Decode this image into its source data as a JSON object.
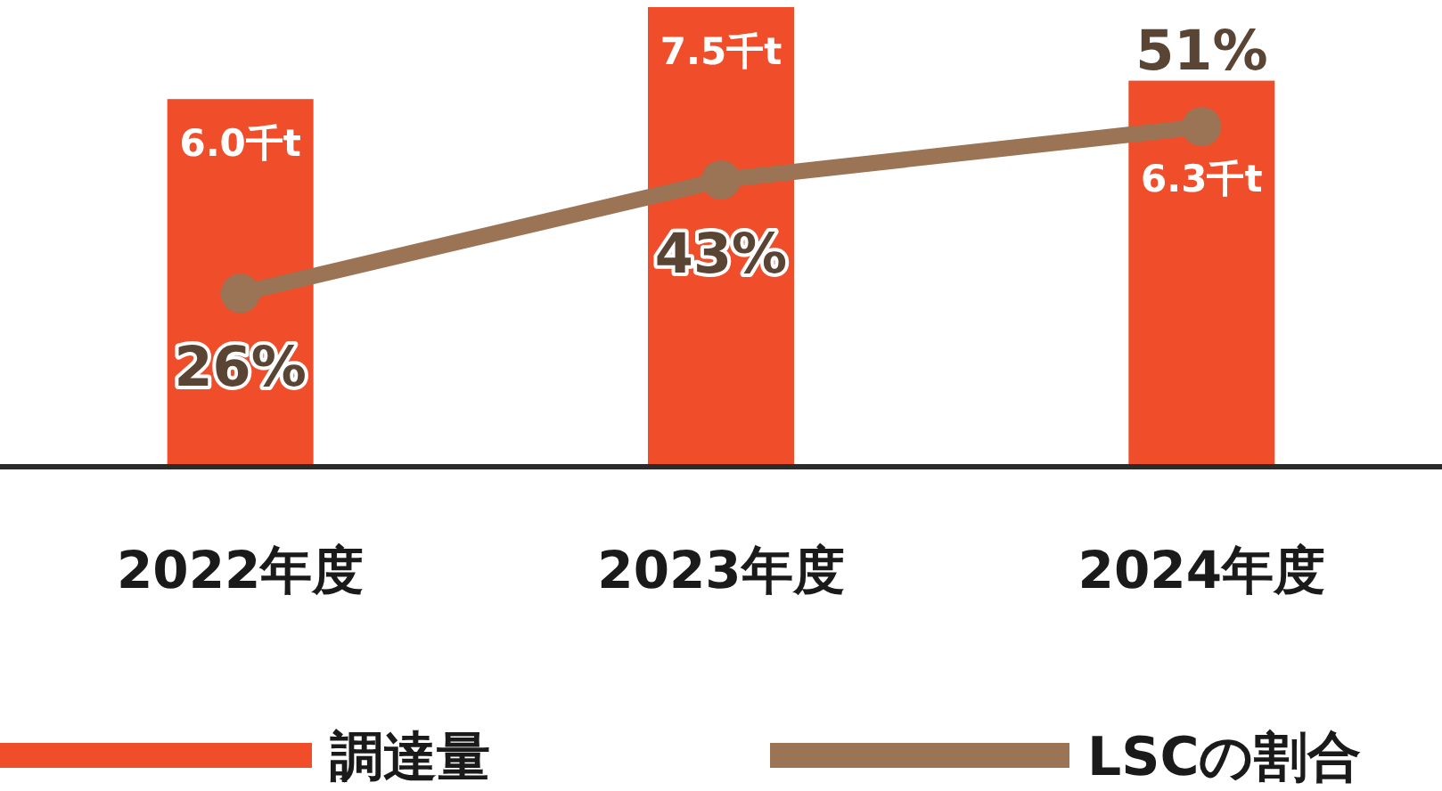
{
  "chart_data": {
    "type": "bar",
    "categories": [
      "2022年度",
      "2023年度",
      "2024年度"
    ],
    "series": [
      {
        "name": "調達量",
        "color": "#f04e2b",
        "values": [
          6.0,
          7.5,
          6.3
        ],
        "value_labels": [
          "6.0千t",
          "7.5千t",
          "6.3千t"
        ]
      },
      {
        "name": "LSCの割合",
        "type": "line",
        "axis": "y2",
        "color": "#9b7355",
        "marker": "circle",
        "values": [
          26,
          43,
          51
        ],
        "value_labels": [
          "26%",
          "43%",
          "51%"
        ]
      }
    ],
    "legend": "bottom"
  }
}
